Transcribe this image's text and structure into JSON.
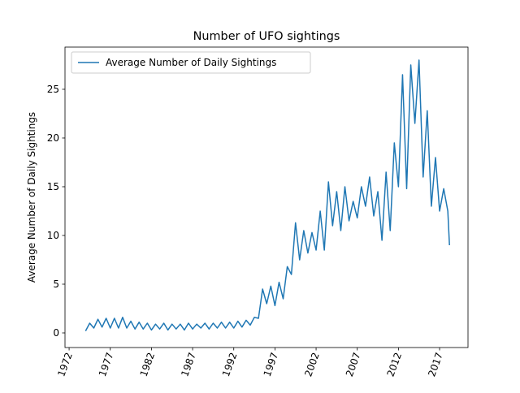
{
  "chart_data": {
    "type": "line",
    "title": "Number of UFO sightings",
    "y_label": "Average Number of Daily Sightings",
    "x": [
      1974.0,
      1974.5,
      1975.0,
      1975.5,
      1976.0,
      1976.5,
      1977.0,
      1977.5,
      1978.0,
      1978.5,
      1979.0,
      1979.5,
      1980.0,
      1980.5,
      1981.0,
      1981.5,
      1982.0,
      1982.5,
      1983.0,
      1983.5,
      1984.0,
      1984.5,
      1985.0,
      1985.5,
      1986.0,
      1986.5,
      1987.0,
      1987.5,
      1988.0,
      1988.5,
      1989.0,
      1989.5,
      1990.0,
      1990.5,
      1991.0,
      1991.5,
      1992.0,
      1992.5,
      1993.0,
      1993.5,
      1994.0,
      1994.5,
      1995.0,
      1995.5,
      1996.0,
      1996.5,
      1997.0,
      1997.5,
      1998.0,
      1998.5,
      1999.0,
      1999.5,
      2000.0,
      2000.5,
      2001.0,
      2001.5,
      2002.0,
      2002.5,
      2003.0,
      2003.5,
      2004.0,
      2004.5,
      2005.0,
      2005.5,
      2006.0,
      2006.5,
      2007.0,
      2007.5,
      2008.0,
      2008.5,
      2009.0,
      2009.5,
      2010.0,
      2010.5,
      2011.0,
      2011.5,
      2012.0,
      2012.5,
      2013.0,
      2013.5,
      2014.0,
      2014.5,
      2015.0,
      2015.5,
      2016.0,
      2016.5,
      2017.0,
      2017.5,
      2018.0,
      2018.2
    ],
    "series": [
      {
        "name": "Average Number of Daily Sightings",
        "color": "#1f77b4",
        "values": [
          0.2,
          1.0,
          0.5,
          1.4,
          0.6,
          1.5,
          0.5,
          1.5,
          0.5,
          1.6,
          0.5,
          1.2,
          0.4,
          1.1,
          0.4,
          1.0,
          0.3,
          0.9,
          0.4,
          1.0,
          0.3,
          0.9,
          0.4,
          0.9,
          0.3,
          1.0,
          0.4,
          0.9,
          0.5,
          1.0,
          0.4,
          1.0,
          0.5,
          1.1,
          0.5,
          1.1,
          0.5,
          1.2,
          0.6,
          1.3,
          0.8,
          1.6,
          1.5,
          4.5,
          3.0,
          4.8,
          2.8,
          5.2,
          3.5,
          6.8,
          6.0,
          11.3,
          7.5,
          10.5,
          8.2,
          10.3,
          8.5,
          12.5,
          8.5,
          15.5,
          11.0,
          14.5,
          10.5,
          15.0,
          11.5,
          13.5,
          11.8,
          15.0,
          13.0,
          16.0,
          12.0,
          14.5,
          9.5,
          16.5,
          10.5,
          19.5,
          15.0,
          26.5,
          14.8,
          27.5,
          21.5,
          28.0,
          16.0,
          22.8,
          13.0,
          18.0,
          12.5,
          14.8,
          12.5,
          9.0
        ]
      }
    ],
    "xlim": [
      1971.5,
      2020.45
    ],
    "xticks": [
      1972,
      1977,
      1982,
      1987,
      1992,
      1997,
      2002,
      2007,
      2012,
      2017
    ],
    "ylim": [
      -1.5,
      29.33
    ],
    "yticks": [
      0,
      5,
      10,
      15,
      20,
      25
    ],
    "legend": "upper left"
  }
}
